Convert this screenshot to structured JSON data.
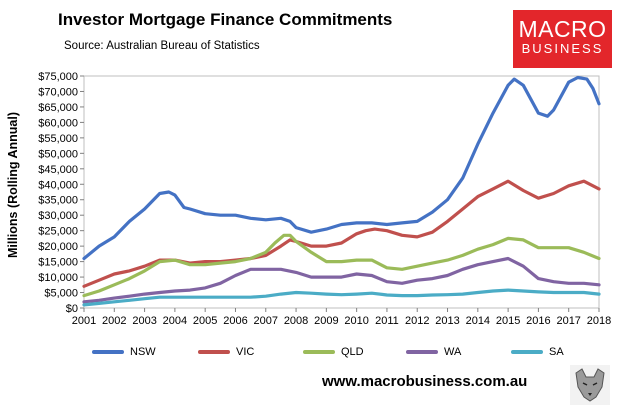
{
  "header": {
    "title": "Investor Mortgage Finance Commitments",
    "subtitle": "Source: Australian Bureau of Statistics"
  },
  "logo": {
    "line1": "MACRO",
    "line2": "BUSINESS"
  },
  "footer": {
    "url": "www.macrobusiness.com.au"
  },
  "colors": {
    "brand": "#e3262b"
  },
  "chart_data": {
    "type": "line",
    "title": "Investor Mortgage Finance Commitments",
    "ylabel": "Millions (Rolling Annual)",
    "xlabel": "",
    "ylim": [
      0,
      75000
    ],
    "xlim": [
      2001,
      2018
    ],
    "y_ticks": [
      "$0",
      "$5,000",
      "$10,000",
      "$15,000",
      "$20,000",
      "$25,000",
      "$30,000",
      "$35,000",
      "$40,000",
      "$45,000",
      "$50,000",
      "$55,000",
      "$60,000",
      "$65,000",
      "$70,000",
      "$75,000"
    ],
    "x_ticks": [
      "2001",
      "2002",
      "2003",
      "2004",
      "2005",
      "2006",
      "2007",
      "2008",
      "2009",
      "2010",
      "2011",
      "2012",
      "2013",
      "2014",
      "2015",
      "2016",
      "2017",
      "2018"
    ],
    "legend_position": "bottom",
    "grid": false,
    "series": [
      {
        "name": "NSW",
        "color": "#4472c4",
        "x": [
          2001,
          2001.5,
          2002,
          2002.5,
          2003,
          2003.5,
          2003.8,
          2004,
          2004.3,
          2004.5,
          2005,
          2005.5,
          2006,
          2006.5,
          2007,
          2007.5,
          2007.8,
          2008,
          2008.5,
          2009,
          2009.5,
          2010,
          2010.5,
          2011,
          2011.5,
          2012,
          2012.5,
          2013,
          2013.5,
          2014,
          2014.5,
          2015,
          2015.2,
          2015.5,
          2016,
          2016.3,
          2016.5,
          2017,
          2017.3,
          2017.6,
          2017.8,
          2018
        ],
        "y": [
          16000,
          20000,
          23000,
          28000,
          32000,
          37000,
          37500,
          36500,
          32500,
          32000,
          30500,
          30000,
          30000,
          29000,
          28500,
          29000,
          28000,
          26000,
          24500,
          25500,
          27000,
          27500,
          27500,
          27000,
          27500,
          28000,
          31000,
          35000,
          42000,
          53000,
          63000,
          72000,
          74000,
          72000,
          63000,
          62000,
          64000,
          73000,
          74500,
          74000,
          71000,
          66000
        ]
      },
      {
        "name": "VIC",
        "color": "#c0504d",
        "x": [
          2001,
          2001.5,
          2002,
          2002.5,
          2003,
          2003.5,
          2004,
          2004.5,
          2005,
          2005.5,
          2006,
          2006.5,
          2007,
          2007.5,
          2007.8,
          2008,
          2008.5,
          2009,
          2009.5,
          2010,
          2010.3,
          2010.6,
          2011,
          2011.5,
          2012,
          2012.5,
          2013,
          2013.5,
          2014,
          2014.5,
          2015,
          2015.5,
          2016,
          2016.5,
          2017,
          2017.5,
          2018
        ],
        "y": [
          7000,
          9000,
          11000,
          12000,
          13500,
          15500,
          15500,
          14500,
          15000,
          15000,
          15500,
          16000,
          17000,
          20000,
          22000,
          21500,
          20000,
          20000,
          21000,
          24000,
          25000,
          25500,
          25000,
          23500,
          23000,
          24500,
          28000,
          32000,
          36000,
          38500,
          41000,
          38000,
          35500,
          37000,
          39500,
          41000,
          38500
        ]
      },
      {
        "name": "QLD",
        "color": "#9bbb59",
        "x": [
          2001,
          2001.5,
          2002,
          2002.5,
          2003,
          2003.5,
          2004,
          2004.5,
          2005,
          2005.5,
          2006,
          2006.5,
          2007,
          2007.3,
          2007.6,
          2007.8,
          2008,
          2008.5,
          2009,
          2009.5,
          2010,
          2010.5,
          2011,
          2011.5,
          2012,
          2012.5,
          2013,
          2013.5,
          2014,
          2014.5,
          2015,
          2015.5,
          2016,
          2016.5,
          2017,
          2017.5,
          2018
        ],
        "y": [
          4000,
          5500,
          7500,
          9500,
          12000,
          15000,
          15500,
          14000,
          14000,
          14500,
          15000,
          16000,
          18000,
          21000,
          23500,
          23500,
          21500,
          18000,
          15000,
          15000,
          15500,
          15500,
          13000,
          12500,
          13500,
          14500,
          15500,
          17000,
          19000,
          20500,
          22500,
          22000,
          19500,
          19500,
          19500,
          18000,
          16000
        ]
      },
      {
        "name": "WA",
        "color": "#8064a2",
        "x": [
          2001,
          2001.5,
          2002,
          2002.5,
          2003,
          2003.5,
          2004,
          2004.5,
          2005,
          2005.5,
          2006,
          2006.5,
          2007,
          2007.5,
          2008,
          2008.5,
          2009,
          2009.5,
          2010,
          2010.5,
          2011,
          2011.5,
          2012,
          2012.5,
          2013,
          2013.5,
          2014,
          2014.5,
          2015,
          2015.5,
          2016,
          2016.5,
          2017,
          2017.5,
          2018
        ],
        "y": [
          2000,
          2500,
          3200,
          3800,
          4500,
          5000,
          5500,
          5800,
          6500,
          8000,
          10500,
          12500,
          12500,
          12500,
          11500,
          10000,
          10000,
          10000,
          11000,
          10500,
          8500,
          8000,
          9000,
          9500,
          10500,
          12500,
          14000,
          15000,
          16000,
          13500,
          9500,
          8500,
          8000,
          8000,
          7500
        ]
      },
      {
        "name": "SA",
        "color": "#4bacc6",
        "x": [
          2001,
          2001.5,
          2002,
          2002.5,
          2003,
          2003.5,
          2004,
          2004.5,
          2005,
          2005.5,
          2006,
          2006.5,
          2007,
          2007.5,
          2008,
          2008.5,
          2009,
          2009.5,
          2010,
          2010.5,
          2011,
          2011.5,
          2012,
          2012.5,
          2013,
          2013.5,
          2014,
          2014.5,
          2015,
          2015.5,
          2016,
          2016.5,
          2017,
          2017.5,
          2018
        ],
        "y": [
          1000,
          1500,
          2000,
          2500,
          3000,
          3500,
          3500,
          3500,
          3500,
          3500,
          3500,
          3500,
          3800,
          4500,
          5000,
          4800,
          4500,
          4300,
          4500,
          4800,
          4200,
          4000,
          4000,
          4200,
          4300,
          4500,
          5000,
          5500,
          5800,
          5500,
          5200,
          5000,
          5000,
          5000,
          4500
        ]
      }
    ]
  }
}
